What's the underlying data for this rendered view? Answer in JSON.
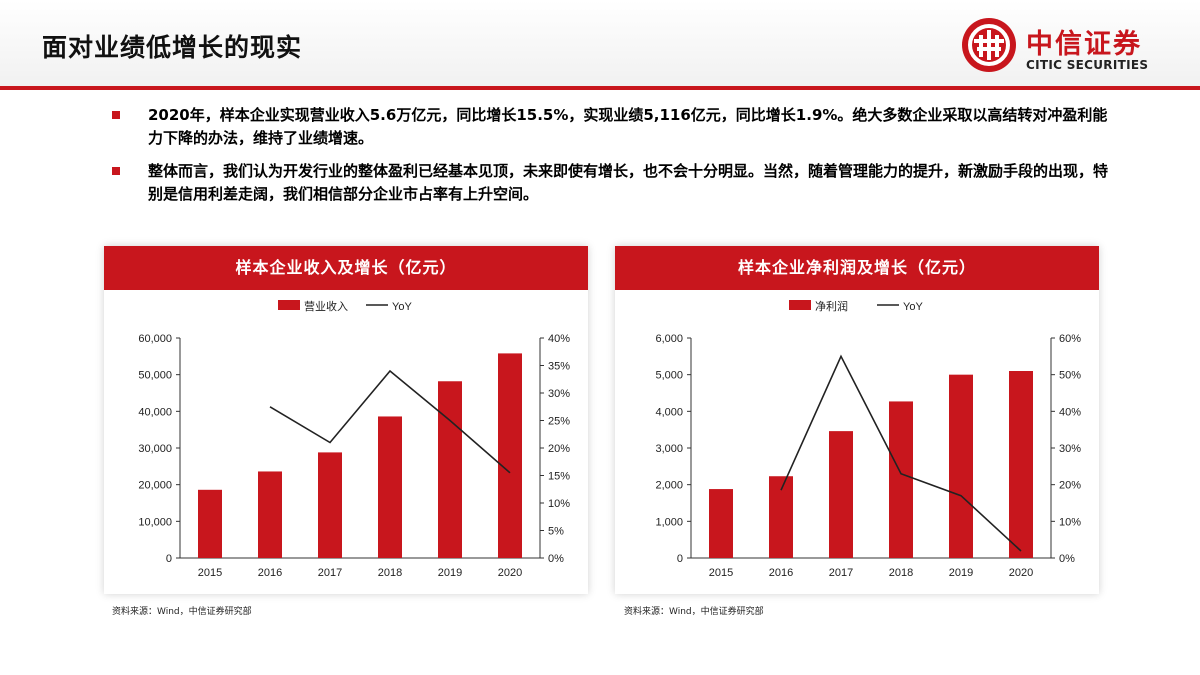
{
  "header": {
    "title": "面对业绩低增长的现实",
    "logo_cn": "中信证券",
    "logo_en": "CITIC SECURITIES"
  },
  "bullets": [
    "2020年，样本企业实现营业收入5.6万亿元，同比增长15.5%，实现业绩5,116亿元，同比增长1.9%。绝大多数企业采取以高结转对冲盈利能力下降的办法，维持了业绩增速。",
    "整体而言，我们认为开发行业的整体盈利已经基本见顶，未来即使有增长，也不会十分明显。当然，随着管理能力的提升，新激励手段的出现，特别是信用利差走阔，我们相信部分企业市占率有上升空间。"
  ],
  "colors": {
    "accent": "#c8161d",
    "line": "#222222"
  },
  "chart_data": [
    {
      "type": "bar",
      "title": "样本企业收入及增长（亿元）",
      "categories": [
        "2015",
        "2016",
        "2017",
        "2018",
        "2019",
        "2020"
      ],
      "series": [
        {
          "name": "营业收入",
          "type": "bar",
          "axis": "left",
          "values": [
            18600,
            23600,
            28800,
            38600,
            48200,
            55800
          ]
        },
        {
          "name": "YoY",
          "type": "line",
          "axis": "right",
          "values": [
            null,
            27.5,
            21,
            34,
            25,
            15.5
          ]
        }
      ],
      "ylim": [
        0,
        60000
      ],
      "yticks": [
        "0",
        "10,000",
        "20,000",
        "30,000",
        "40,000",
        "50,000",
        "60,000"
      ],
      "y2lim": [
        0,
        40
      ],
      "y2ticks": [
        "0%",
        "5%",
        "10%",
        "15%",
        "20%",
        "25%",
        "30%",
        "35%",
        "40%"
      ],
      "legend": "top-center",
      "source": "资料来源：Wind，中信证券研究部"
    },
    {
      "type": "bar",
      "title": "样本企业净利润及增长（亿元）",
      "categories": [
        "2015",
        "2016",
        "2017",
        "2018",
        "2019",
        "2020"
      ],
      "series": [
        {
          "name": "净利润",
          "type": "bar",
          "axis": "left",
          "values": [
            1880,
            2230,
            3460,
            4270,
            5000,
            5100
          ]
        },
        {
          "name": "YoY",
          "type": "line",
          "axis": "right",
          "values": [
            null,
            18.5,
            55,
            23,
            17,
            1.9
          ]
        }
      ],
      "ylim": [
        0,
        6000
      ],
      "yticks": [
        "0",
        "1,000",
        "2,000",
        "3,000",
        "4,000",
        "5,000",
        "6,000"
      ],
      "y2lim": [
        0,
        60
      ],
      "y2ticks": [
        "0%",
        "10%",
        "20%",
        "30%",
        "40%",
        "50%",
        "60%"
      ],
      "legend": "top-center",
      "source": "资料来源：Wind，中信证券研究部"
    }
  ]
}
